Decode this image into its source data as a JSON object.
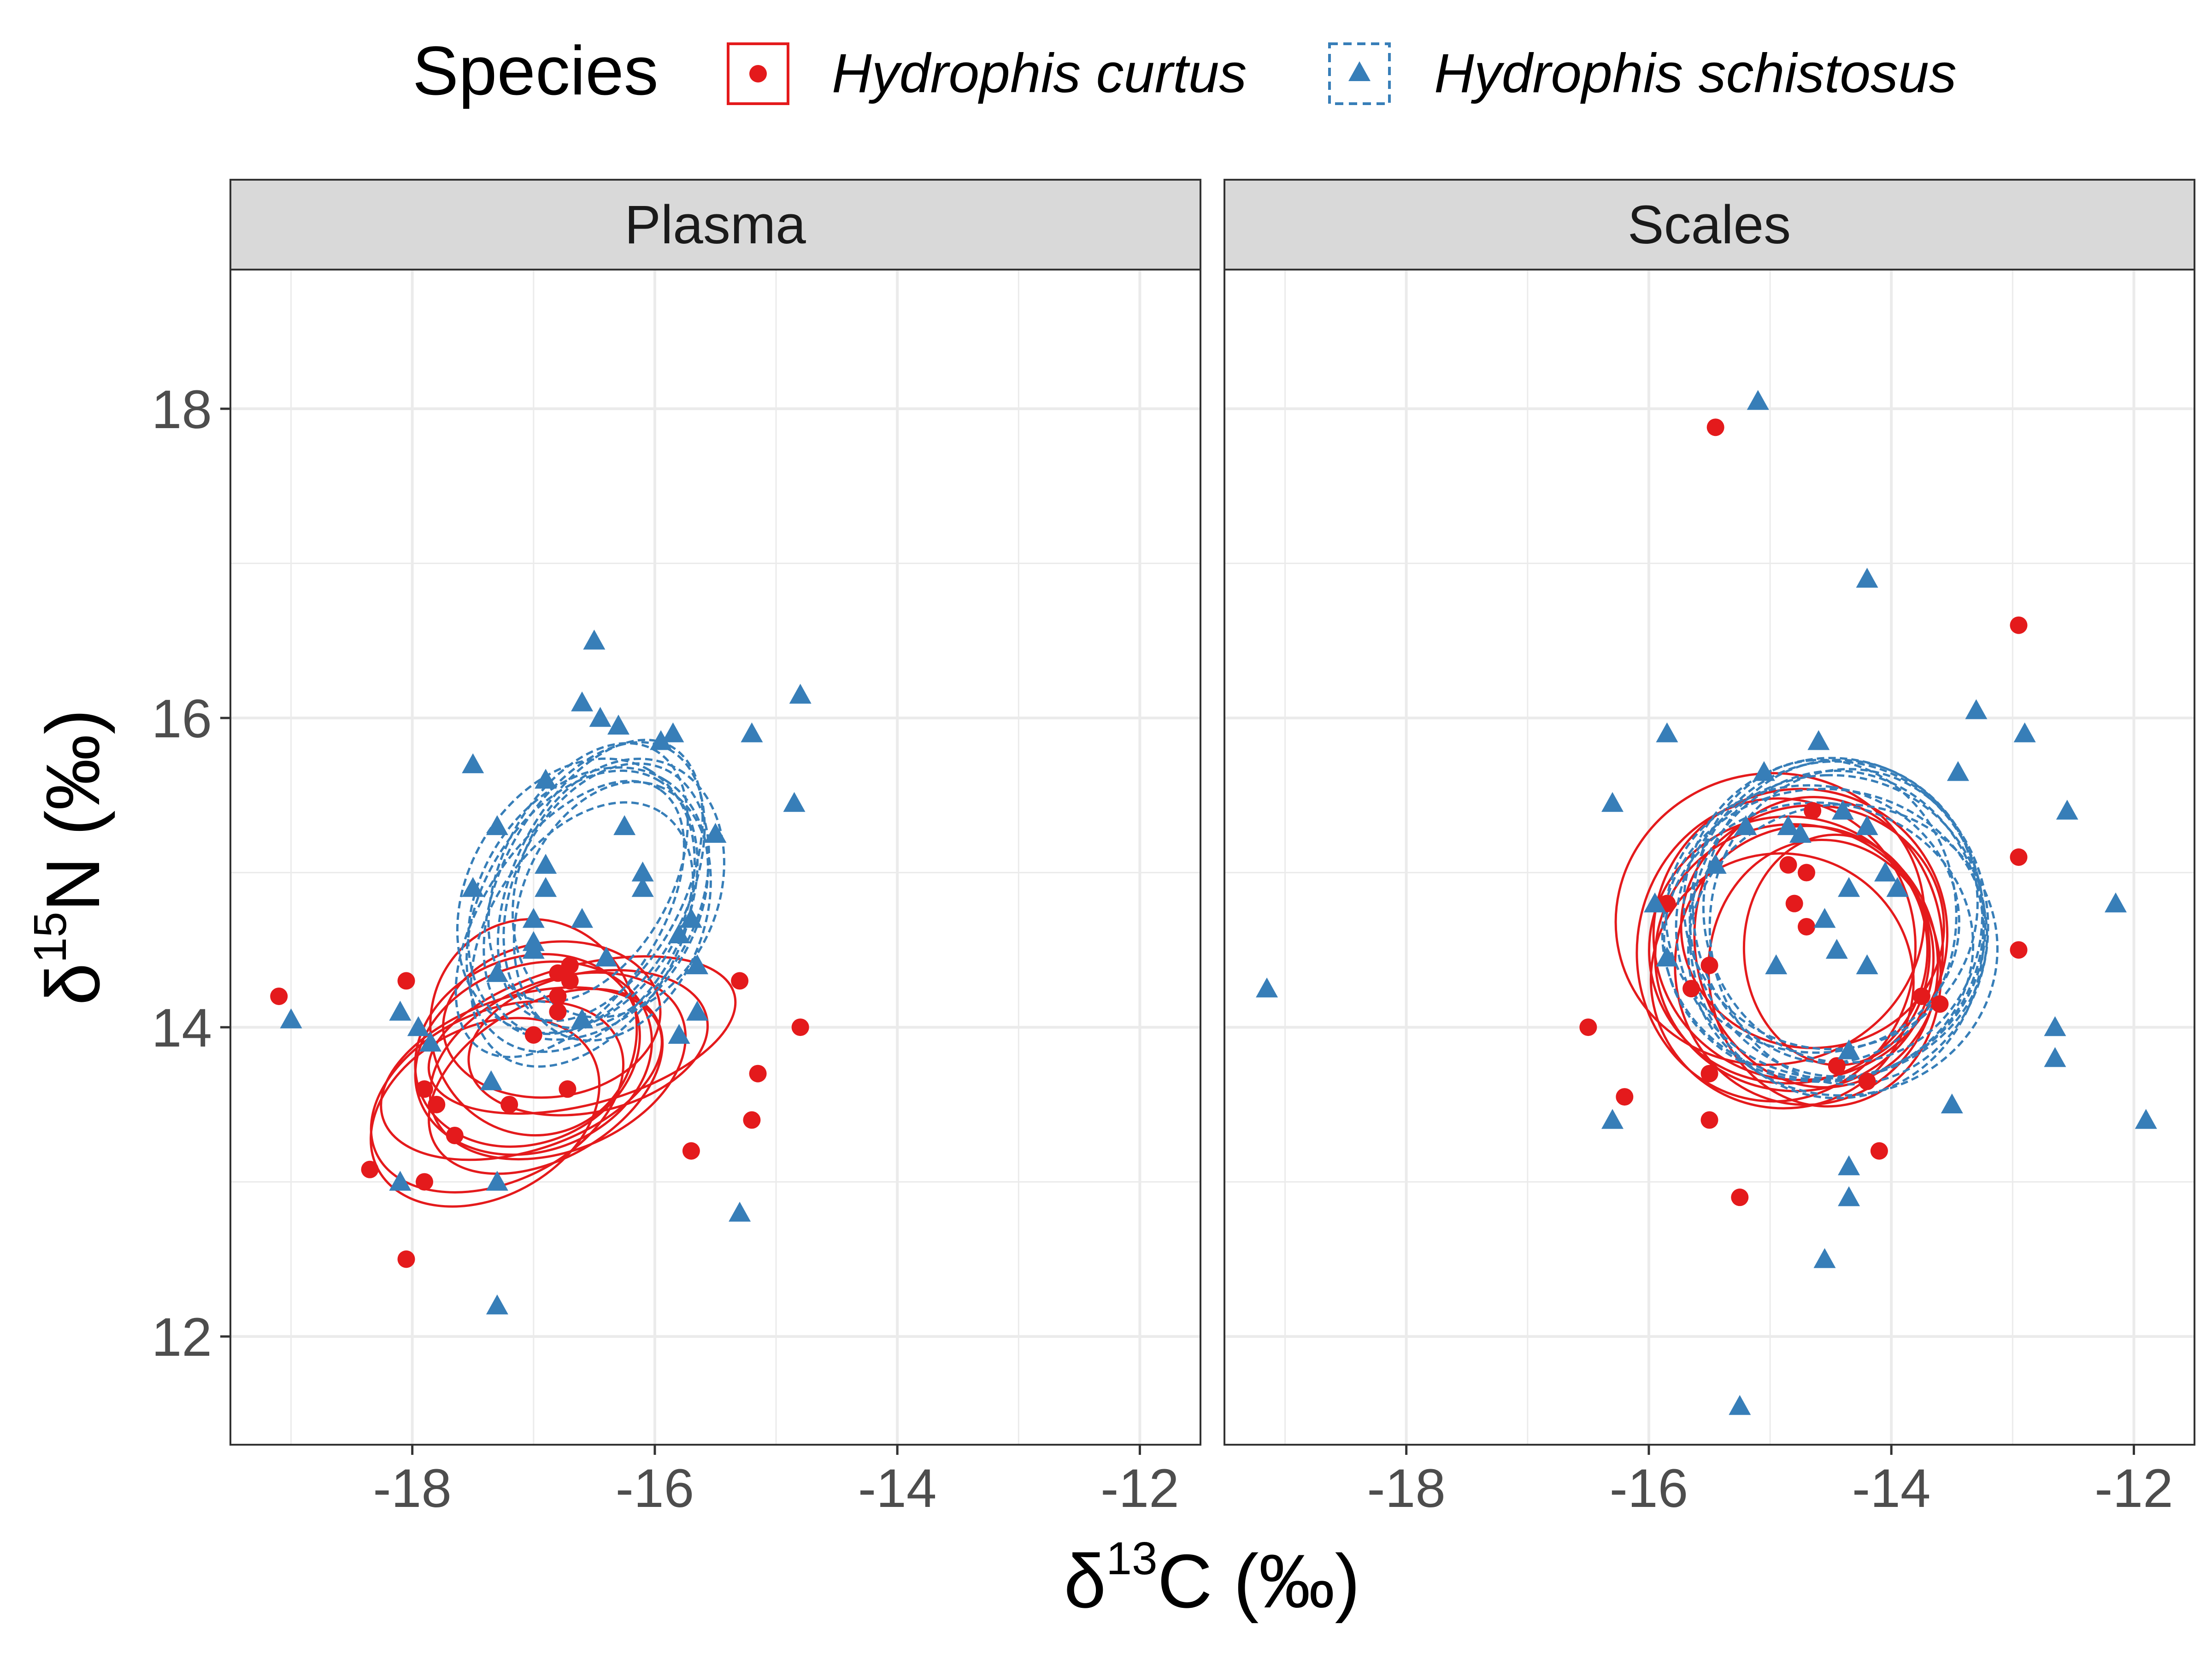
{
  "chart_data": {
    "type": "scatter",
    "legend": {
      "title": "Species",
      "position": "top",
      "entries": [
        {
          "name": "Hydrophis curtus",
          "color": "#E41A1C",
          "marker": "circle",
          "ellipse_line": "solid"
        },
        {
          "name": "Hydrophis schistosus",
          "color": "#377EB8",
          "marker": "triangle",
          "ellipse_line": "dashed"
        }
      ]
    },
    "xlabel": {
      "delta": "δ",
      "sup": "13",
      "main": "C (‰)"
    },
    "ylabel": {
      "delta": "δ",
      "sup": "15",
      "main": "N (‰)"
    },
    "xlim": [
      -19.5,
      -11.5
    ],
    "ylim": [
      11.3,
      18.9
    ],
    "x_ticks": [
      -18,
      -16,
      -14,
      -12
    ],
    "x_tick_labels": [
      "-18",
      "-16",
      "-14",
      "-12"
    ],
    "y_ticks": [
      12,
      14,
      16,
      18
    ],
    "y_tick_labels": [
      "12",
      "14",
      "16",
      "18"
    ],
    "grid": true,
    "panels": [
      {
        "title": "Plasma",
        "series": [
          {
            "name": "Hydrophis curtus",
            "points": [
              [
                -19.1,
                14.2
              ],
              [
                -18.35,
                13.08
              ],
              [
                -18.05,
                14.3
              ],
              [
                -18.05,
                12.5
              ],
              [
                -17.9,
                13.6
              ],
              [
                -17.9,
                13.0
              ],
              [
                -17.8,
                13.5
              ],
              [
                -17.65,
                13.3
              ],
              [
                -17.2,
                13.5
              ],
              [
                -17.0,
                13.95
              ],
              [
                -16.8,
                14.35
              ],
              [
                -16.8,
                14.2
              ],
              [
                -16.8,
                14.1
              ],
              [
                -16.72,
                13.6
              ],
              [
                -16.7,
                14.4
              ],
              [
                -16.7,
                14.3
              ],
              [
                -15.7,
                13.2
              ],
              [
                -15.3,
                14.3
              ],
              [
                -15.2,
                13.4
              ],
              [
                -15.15,
                13.7
              ],
              [
                -14.8,
                14.0
              ]
            ],
            "ellipses": [
              {
                "cx": -17.0,
                "cy": 13.8,
                "rx": 1.0,
                "ry": 0.6,
                "angle": 20
              },
              {
                "cx": -16.8,
                "cy": 13.75,
                "rx": 1.1,
                "ry": 0.55,
                "angle": 22
              },
              {
                "cx": -17.1,
                "cy": 13.7,
                "rx": 1.2,
                "ry": 0.5,
                "angle": 18
              },
              {
                "cx": -16.6,
                "cy": 13.95,
                "rx": 1.3,
                "ry": 0.45,
                "angle": 15
              },
              {
                "cx": -17.3,
                "cy": 13.55,
                "rx": 1.1,
                "ry": 0.55,
                "angle": 25
              },
              {
                "cx": -16.9,
                "cy": 13.65,
                "rx": 1.05,
                "ry": 0.5,
                "angle": 30
              },
              {
                "cx": -17.0,
                "cy": 14.0,
                "rx": 0.85,
                "ry": 0.7,
                "angle": 10
              },
              {
                "cx": -16.55,
                "cy": 13.9,
                "rx": 1.0,
                "ry": 0.45,
                "angle": 12
              },
              {
                "cx": -17.4,
                "cy": 13.45,
                "rx": 1.0,
                "ry": 0.55,
                "angle": 28
              },
              {
                "cx": -16.85,
                "cy": 14.05,
                "rx": 0.9,
                "ry": 0.5,
                "angle": 8
              },
              {
                "cx": -17.05,
                "cy": 13.85,
                "rx": 0.95,
                "ry": 0.6,
                "angle": 22
              }
            ]
          },
          {
            "name": "Hydrophis schistosus",
            "points": [
              [
                -19.0,
                14.05
              ],
              [
                -18.1,
                13.0
              ],
              [
                -18.1,
                14.1
              ],
              [
                -17.95,
                14.0
              ],
              [
                -17.85,
                13.9
              ],
              [
                -17.5,
                15.7
              ],
              [
                -17.5,
                14.9
              ],
              [
                -17.35,
                13.65
              ],
              [
                -17.3,
                15.3
              ],
              [
                -17.3,
                14.35
              ],
              [
                -17.3,
                13.0
              ],
              [
                -17.3,
                12.2
              ],
              [
                -17.0,
                14.7
              ],
              [
                -17.0,
                14.55
              ],
              [
                -17.0,
                14.5
              ],
              [
                -16.9,
                15.6
              ],
              [
                -16.9,
                15.05
              ],
              [
                -16.9,
                14.9
              ],
              [
                -16.6,
                16.1
              ],
              [
                -16.6,
                14.7
              ],
              [
                -16.6,
                14.05
              ],
              [
                -16.5,
                16.5
              ],
              [
                -16.45,
                16.0
              ],
              [
                -16.4,
                14.45
              ],
              [
                -16.3,
                15.95
              ],
              [
                -16.25,
                15.3
              ],
              [
                -16.1,
                15.0
              ],
              [
                -16.1,
                14.9
              ],
              [
                -15.95,
                15.85
              ],
              [
                -15.85,
                15.9
              ],
              [
                -15.8,
                13.95
              ],
              [
                -15.8,
                14.6
              ],
              [
                -15.7,
                14.7
              ],
              [
                -15.65,
                14.4
              ],
              [
                -15.65,
                14.1
              ],
              [
                -15.5,
                15.25
              ],
              [
                -15.3,
                12.8
              ],
              [
                -15.2,
                15.9
              ],
              [
                -14.85,
                15.45
              ],
              [
                -14.8,
                16.15
              ]
            ],
            "ellipses": [
              {
                "cx": -16.6,
                "cy": 14.75,
                "rx": 1.25,
                "ry": 0.65,
                "angle": 60
              },
              {
                "cx": -16.5,
                "cy": 14.9,
                "rx": 1.3,
                "ry": 0.6,
                "angle": 62
              },
              {
                "cx": -16.55,
                "cy": 14.8,
                "rx": 1.2,
                "ry": 0.7,
                "angle": 58
              },
              {
                "cx": -16.4,
                "cy": 14.85,
                "rx": 1.15,
                "ry": 0.6,
                "angle": 65
              },
              {
                "cx": -16.7,
                "cy": 14.7,
                "rx": 1.3,
                "ry": 0.55,
                "angle": 55
              },
              {
                "cx": -16.3,
                "cy": 14.9,
                "rx": 1.1,
                "ry": 0.65,
                "angle": 68
              },
              {
                "cx": -16.6,
                "cy": 14.6,
                "rx": 1.2,
                "ry": 0.6,
                "angle": 57
              },
              {
                "cx": -16.45,
                "cy": 14.95,
                "rx": 1.25,
                "ry": 0.55,
                "angle": 63
              },
              {
                "cx": -16.65,
                "cy": 14.85,
                "rx": 1.2,
                "ry": 0.7,
                "angle": 60
              },
              {
                "cx": -16.35,
                "cy": 14.75,
                "rx": 1.1,
                "ry": 0.6,
                "angle": 70
              },
              {
                "cx": -16.55,
                "cy": 15.0,
                "rx": 1.15,
                "ry": 0.55,
                "angle": 62
              }
            ]
          }
        ]
      },
      {
        "title": "Scales",
        "series": [
          {
            "name": "Hydrophis curtus",
            "points": [
              [
                -16.5,
                14.0
              ],
              [
                -16.2,
                13.55
              ],
              [
                -15.85,
                14.8
              ],
              [
                -15.65,
                14.25
              ],
              [
                -15.5,
                14.4
              ],
              [
                -15.5,
                13.7
              ],
              [
                -15.5,
                13.4
              ],
              [
                -15.45,
                17.88
              ],
              [
                -15.25,
                12.9
              ],
              [
                -14.85,
                15.05
              ],
              [
                -14.8,
                14.8
              ],
              [
                -14.7,
                15.0
              ],
              [
                -14.7,
                14.65
              ],
              [
                -14.65,
                15.4
              ],
              [
                -14.45,
                13.75
              ],
              [
                -14.2,
                13.65
              ],
              [
                -14.1,
                13.2
              ],
              [
                -13.75,
                14.2
              ],
              [
                -13.6,
                14.15
              ],
              [
                -12.95,
                14.5
              ],
              [
                -12.95,
                15.1
              ],
              [
                -12.95,
                16.6
              ]
            ],
            "ellipses": [
              {
                "cx": -14.75,
                "cy": 14.6,
                "rx": 1.2,
                "ry": 0.95,
                "angle": 95
              },
              {
                "cx": -14.85,
                "cy": 14.5,
                "rx": 1.1,
                "ry": 0.9,
                "angle": 92
              },
              {
                "cx": -14.7,
                "cy": 14.4,
                "rx": 1.15,
                "ry": 0.85,
                "angle": 88
              },
              {
                "cx": -14.9,
                "cy": 14.3,
                "rx": 1.05,
                "ry": 0.85,
                "angle": 80
              },
              {
                "cx": -14.6,
                "cy": 14.55,
                "rx": 1.2,
                "ry": 0.8,
                "angle": 98
              },
              {
                "cx": -15.0,
                "cy": 14.7,
                "rx": 1.2,
                "ry": 1.0,
                "angle": 100
              },
              {
                "cx": -14.55,
                "cy": 14.35,
                "rx": 1.1,
                "ry": 0.75,
                "angle": 95
              },
              {
                "cx": -14.8,
                "cy": 14.45,
                "rx": 1.1,
                "ry": 0.9,
                "angle": 86
              },
              {
                "cx": -14.65,
                "cy": 14.65,
                "rx": 1.0,
                "ry": 0.85,
                "angle": 90
              },
              {
                "cx": -14.45,
                "cy": 14.5,
                "rx": 0.95,
                "ry": 0.6,
                "angle": 92
              },
              {
                "cx": -14.95,
                "cy": 14.5,
                "rx": 1.25,
                "ry": 0.9,
                "angle": 84
              }
            ]
          },
          {
            "name": "Hydrophis schistosus",
            "points": [
              [
                -19.15,
                14.25
              ],
              [
                -16.3,
                15.45
              ],
              [
                -16.3,
                13.4
              ],
              [
                -15.95,
                14.8
              ],
              [
                -15.85,
                15.9
              ],
              [
                -15.85,
                14.45
              ],
              [
                -15.45,
                15.05
              ],
              [
                -15.25,
                11.55
              ],
              [
                -15.2,
                15.3
              ],
              [
                -15.1,
                18.05
              ],
              [
                -15.05,
                15.65
              ],
              [
                -14.95,
                14.4
              ],
              [
                -14.85,
                15.3
              ],
              [
                -14.75,
                15.25
              ],
              [
                -14.6,
                15.85
              ],
              [
                -14.55,
                14.7
              ],
              [
                -14.55,
                12.5
              ],
              [
                -14.45,
                14.5
              ],
              [
                -14.4,
                15.4
              ],
              [
                -14.35,
                14.9
              ],
              [
                -14.35,
                13.85
              ],
              [
                -14.35,
                13.1
              ],
              [
                -14.35,
                12.9
              ],
              [
                -14.2,
                16.9
              ],
              [
                -14.2,
                15.3
              ],
              [
                -14.2,
                14.4
              ],
              [
                -14.05,
                15.0
              ],
              [
                -13.95,
                14.9
              ],
              [
                -13.5,
                13.5
              ],
              [
                -13.45,
                15.65
              ],
              [
                -13.3,
                16.05
              ],
              [
                -12.9,
                15.9
              ],
              [
                -12.65,
                14.0
              ],
              [
                -12.65,
                13.8
              ],
              [
                -12.55,
                15.4
              ],
              [
                -12.15,
                14.8
              ],
              [
                -11.9,
                13.4
              ]
            ],
            "ellipses": [
              {
                "cx": -14.5,
                "cy": 14.65,
                "rx": 1.25,
                "ry": 1.0,
                "angle": 92
              },
              {
                "cx": -14.45,
                "cy": 14.7,
                "rx": 1.3,
                "ry": 0.95,
                "angle": 95
              },
              {
                "cx": -14.55,
                "cy": 14.6,
                "rx": 1.2,
                "ry": 1.05,
                "angle": 88
              },
              {
                "cx": -14.4,
                "cy": 14.75,
                "rx": 1.25,
                "ry": 0.9,
                "angle": 98
              },
              {
                "cx": -14.6,
                "cy": 14.55,
                "rx": 1.15,
                "ry": 1.0,
                "angle": 85
              },
              {
                "cx": -14.35,
                "cy": 14.65,
                "rx": 1.3,
                "ry": 0.9,
                "angle": 90
              },
              {
                "cx": -14.5,
                "cy": 14.8,
                "rx": 1.2,
                "ry": 0.95,
                "angle": 100
              },
              {
                "cx": -14.65,
                "cy": 14.7,
                "rx": 1.1,
                "ry": 0.95,
                "angle": 82
              },
              {
                "cx": -14.4,
                "cy": 14.5,
                "rx": 1.2,
                "ry": 1.0,
                "angle": 94
              },
              {
                "cx": -14.55,
                "cy": 14.75,
                "rx": 1.25,
                "ry": 0.85,
                "angle": 96
              },
              {
                "cx": -14.45,
                "cy": 14.6,
                "rx": 1.35,
                "ry": 0.95,
                "angle": 91
              }
            ]
          }
        ]
      }
    ]
  }
}
